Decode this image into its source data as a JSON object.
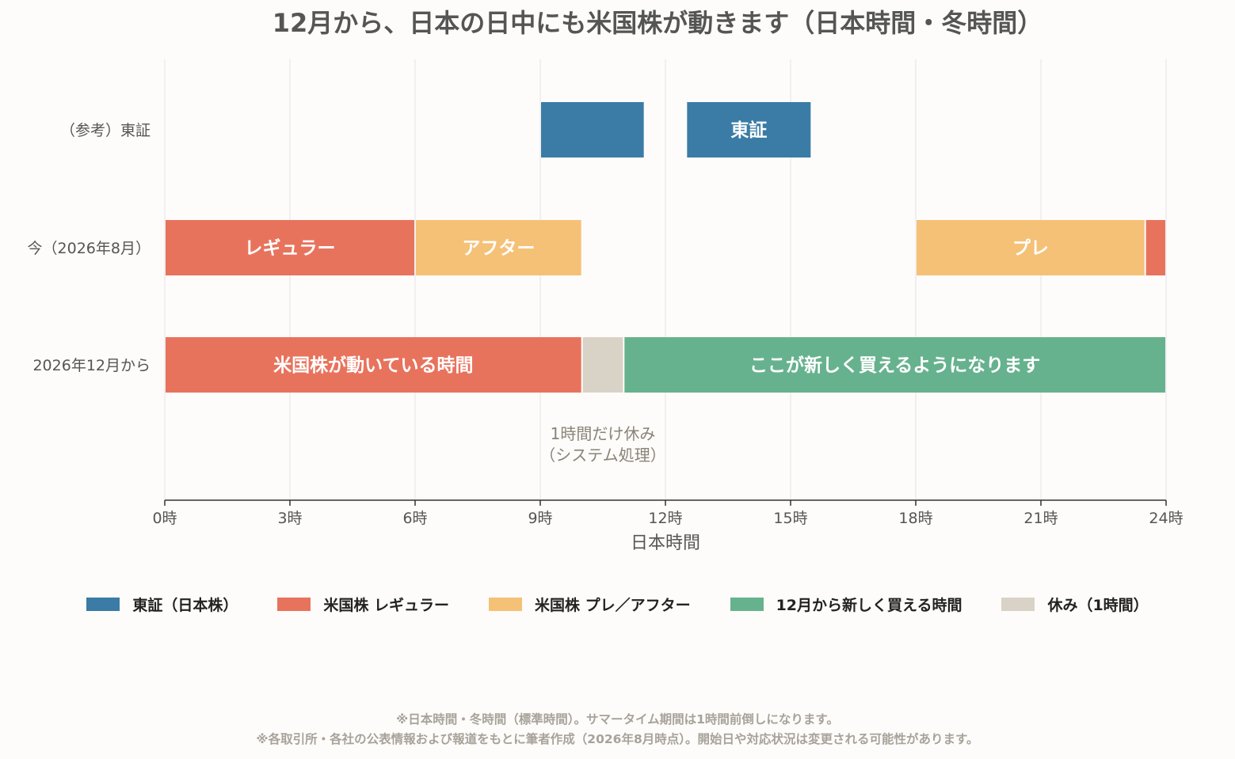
{
  "chart_data": {
    "type": "gantt",
    "title": "12月から、日本の日中にも米国株が動きます（日本時間・冬時間）",
    "xlabel": "日本時間",
    "xlim": [
      0,
      24
    ],
    "xticks": [
      0,
      3,
      6,
      9,
      12,
      15,
      18,
      21,
      24
    ],
    "xtick_labels": [
      "0時",
      "3時",
      "6時",
      "9時",
      "12時",
      "15時",
      "18時",
      "21時",
      "24時"
    ],
    "grid": true,
    "rows": [
      {
        "label": "（参考）東証",
        "bars": [
          {
            "start": 9.0,
            "end": 11.5,
            "category": "tse",
            "label": ""
          },
          {
            "start": 12.5,
            "end": 15.5,
            "category": "tse",
            "label": "東証"
          }
        ]
      },
      {
        "label": "今（2026年8月）",
        "bars": [
          {
            "start": 0.0,
            "end": 6.0,
            "category": "regular",
            "label": "レギュラー"
          },
          {
            "start": 6.0,
            "end": 10.0,
            "category": "preafter",
            "label": "アフター"
          },
          {
            "start": 18.0,
            "end": 23.5,
            "category": "preafter",
            "label": "プレ"
          },
          {
            "start": 23.5,
            "end": 24.0,
            "category": "regular",
            "label": ""
          }
        ]
      },
      {
        "label": "2026年12月から",
        "bars": [
          {
            "start": 0.0,
            "end": 10.0,
            "category": "regular",
            "label": "米国株が動いている時間"
          },
          {
            "start": 10.0,
            "end": 11.0,
            "category": "break",
            "label": ""
          },
          {
            "start": 11.0,
            "end": 24.0,
            "category": "new",
            "label": "ここが新しく買えるようになります"
          }
        ]
      }
    ],
    "annotation": {
      "line1": "1時間だけ休み",
      "line2": "（システム処理）"
    },
    "legend": [
      {
        "category": "tse",
        "name": "東証（日本株）",
        "color": "#3a7ca5"
      },
      {
        "category": "regular",
        "name": "米国株 レギュラー",
        "color": "#e8735d"
      },
      {
        "category": "preafter",
        "name": "米国株 プレ／アフター",
        "color": "#f5c177"
      },
      {
        "category": "new",
        "name": "12月から新しく買える時間",
        "color": "#67b28e"
      },
      {
        "category": "break",
        "name": "休み（1時間）",
        "color": "#d9d2c7"
      }
    ],
    "legend_position": "bottom"
  },
  "notes": {
    "line1": "※日本時間・冬時間（標準時間）。サマータイム期間は1時間前倒しになります。",
    "line2": "※各取引所・各社の公表情報および報道をもとに筆者作成（2026年8月時点）。開始日や対応状況は変更される可能性があります。"
  }
}
